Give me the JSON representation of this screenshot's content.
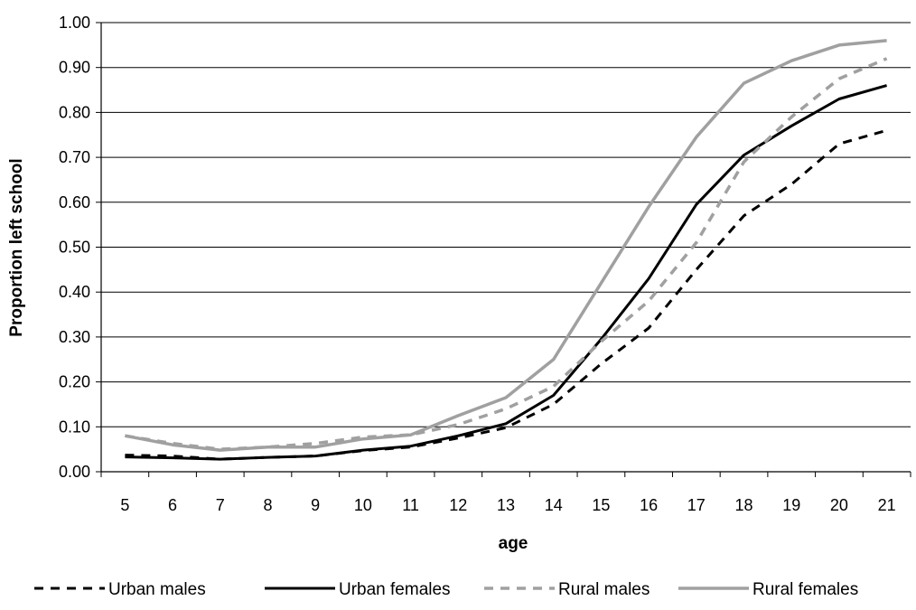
{
  "chart_data": {
    "type": "line",
    "title": "",
    "xlabel": "age",
    "ylabel": "Proportion left school",
    "x": [
      5,
      6,
      7,
      8,
      9,
      10,
      11,
      12,
      13,
      14,
      15,
      16,
      17,
      18,
      19,
      20,
      21
    ],
    "x_tick_labels": [
      "5",
      "6",
      "7",
      "8",
      "9",
      "10",
      "11",
      "12",
      "13",
      "14",
      "15",
      "16",
      "17",
      "18",
      "19",
      "20",
      "21"
    ],
    "ylim": [
      0,
      1
    ],
    "y_tick_labels": [
      "0.00",
      "0.10",
      "0.20",
      "0.30",
      "0.40",
      "0.50",
      "0.60",
      "0.70",
      "0.80",
      "0.90",
      "1.00"
    ],
    "y_ticks": [
      0,
      0.1,
      0.2,
      0.3,
      0.4,
      0.5,
      0.6,
      0.7,
      0.8,
      0.9,
      1.0
    ],
    "grid": "horizontal",
    "legend_position": "bottom",
    "series": [
      {
        "name": "Urban males",
        "color": "#000000",
        "style": "dashed",
        "values": [
          0.037,
          0.035,
          0.028,
          0.032,
          0.035,
          0.047,
          0.055,
          0.075,
          0.098,
          0.15,
          0.24,
          0.32,
          0.45,
          0.57,
          0.64,
          0.73,
          0.76
        ]
      },
      {
        "name": "Urban females",
        "color": "#000000",
        "style": "solid",
        "values": [
          0.033,
          0.031,
          0.028,
          0.032,
          0.035,
          0.048,
          0.057,
          0.08,
          0.107,
          0.17,
          0.295,
          0.43,
          0.595,
          0.705,
          0.77,
          0.83,
          0.86
        ]
      },
      {
        "name": "Rural males",
        "color": "#a0a0a0",
        "style": "dashed",
        "values": [
          0.08,
          0.063,
          0.05,
          0.055,
          0.063,
          0.077,
          0.082,
          0.105,
          0.14,
          0.19,
          0.29,
          0.38,
          0.51,
          0.69,
          0.79,
          0.875,
          0.92
        ]
      },
      {
        "name": "Rural females",
        "color": "#a0a0a0",
        "style": "solid",
        "values": [
          0.08,
          0.06,
          0.048,
          0.055,
          0.055,
          0.073,
          0.082,
          0.125,
          0.165,
          0.25,
          0.42,
          0.59,
          0.745,
          0.865,
          0.915,
          0.95,
          0.96
        ]
      }
    ]
  }
}
